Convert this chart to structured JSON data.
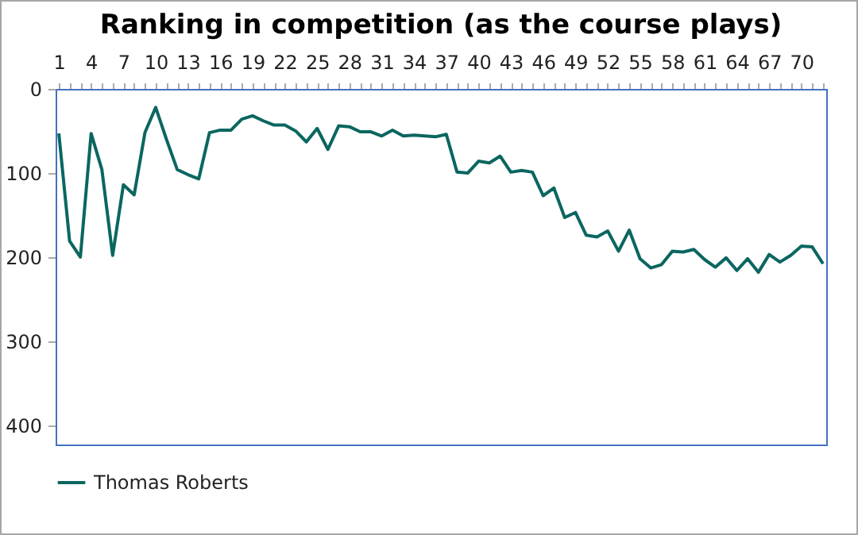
{
  "chart_data": {
    "type": "line",
    "title": "Ranking in competition (as the course plays)",
    "categories": [
      "1",
      null,
      null,
      "4",
      null,
      null,
      "7",
      null,
      null,
      "10",
      null,
      null,
      "13",
      null,
      null,
      "16",
      null,
      null,
      "19",
      null,
      null,
      "22",
      null,
      null,
      "25",
      null,
      null,
      "28",
      null,
      null,
      "31",
      null,
      null,
      "34",
      null,
      null,
      "37",
      null,
      null,
      "40",
      null,
      null,
      "43",
      null,
      null,
      "46",
      null,
      null,
      "49",
      null,
      null,
      "52",
      null,
      null,
      "55",
      null,
      null,
      "58",
      null,
      null,
      "61",
      null,
      null,
      "64",
      null,
      null,
      "67",
      null,
      null,
      "70",
      null,
      null
    ],
    "series": [
      {
        "name": "Thomas Roberts",
        "color": "#0b6660",
        "values": [
          53,
          181,
          200,
          53,
          96,
          198,
          114,
          126,
          52,
          22,
          60,
          96,
          102,
          107,
          52,
          49,
          49,
          36,
          32,
          38,
          43,
          43,
          50,
          63,
          47,
          72,
          44,
          45,
          51,
          51,
          56,
          49,
          56,
          55,
          56,
          57,
          54,
          99,
          100,
          86,
          88,
          80,
          99,
          97,
          99,
          127,
          118,
          153,
          147,
          174,
          176,
          169,
          193,
          168,
          202,
          213,
          209,
          193,
          194,
          191,
          203,
          212,
          201,
          216,
          202,
          218,
          197,
          206,
          198,
          187,
          188,
          208
        ]
      }
    ],
    "ylim": [
      423,
      0
    ],
    "yticks": [
      0,
      100,
      200,
      300,
      400
    ],
    "grid": false,
    "legend": "bottom"
  }
}
